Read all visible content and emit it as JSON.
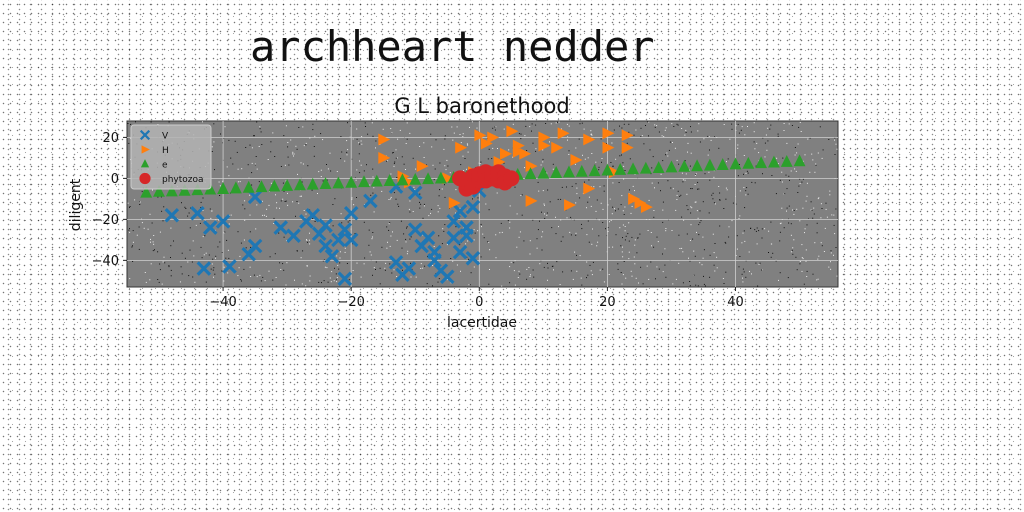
{
  "page_title": "archheart nedder",
  "chart_data": {
    "type": "scatter",
    "title": "G L baronethood",
    "xlabel": "lacertidae",
    "ylabel": "diligent",
    "xlim": [
      -55,
      56
    ],
    "ylim": [
      -53,
      28
    ],
    "x_ticks": [
      -40,
      -20,
      0,
      20,
      40
    ],
    "y_ticks": [
      -40,
      -20,
      0,
      20
    ],
    "grid": true,
    "legend_position": "top-left",
    "background": "#808080",
    "series": [
      {
        "name": "V",
        "marker": "x",
        "color": "#1f77b4",
        "points": [
          [
            -48,
            -18
          ],
          [
            -44,
            -17
          ],
          [
            -42,
            -24
          ],
          [
            -40,
            -21
          ],
          [
            -43,
            -44
          ],
          [
            -39,
            -43
          ],
          [
            -36,
            -37
          ],
          [
            -35,
            -33
          ],
          [
            -35,
            -9
          ],
          [
            -31,
            -24
          ],
          [
            -29,
            -28
          ],
          [
            -27,
            -21
          ],
          [
            -26,
            -18
          ],
          [
            -25,
            -27
          ],
          [
            -24,
            -23
          ],
          [
            -24,
            -33
          ],
          [
            -23,
            -38
          ],
          [
            -22,
            -30
          ],
          [
            -21,
            -25
          ],
          [
            -20,
            -17
          ],
          [
            -20,
            -30
          ],
          [
            -21,
            -49
          ],
          [
            -17,
            -11
          ],
          [
            -13,
            -4
          ],
          [
            -13,
            -41
          ],
          [
            -12,
            -47
          ],
          [
            -11,
            -44
          ],
          [
            -10,
            -7
          ],
          [
            -10,
            -25
          ],
          [
            -9,
            -33
          ],
          [
            -8,
            -29
          ],
          [
            -7,
            -36
          ],
          [
            -7,
            -40
          ],
          [
            -6,
            -45
          ],
          [
            -5,
            -48
          ],
          [
            -4,
            -21
          ],
          [
            -4,
            -29
          ],
          [
            -3,
            -16
          ],
          [
            -3,
            -36
          ],
          [
            -2,
            -24
          ],
          [
            -2,
            -28
          ],
          [
            -1,
            -14
          ],
          [
            -1,
            -39
          ],
          [
            0,
            -6
          ]
        ]
      },
      {
        "name": "H",
        "marker": "triangle-right",
        "color": "#ff7f0e",
        "points": [
          [
            -15,
            19
          ],
          [
            -15,
            10
          ],
          [
            -12,
            1
          ],
          [
            -11,
            -2
          ],
          [
            -9,
            6
          ],
          [
            -5,
            0
          ],
          [
            -4,
            -12
          ],
          [
            -3,
            15
          ],
          [
            -1,
            3
          ],
          [
            0,
            21
          ],
          [
            1,
            17
          ],
          [
            2,
            20
          ],
          [
            3,
            8
          ],
          [
            4,
            12
          ],
          [
            5,
            23
          ],
          [
            6,
            16
          ],
          [
            7,
            12
          ],
          [
            8,
            -11
          ],
          [
            8,
            6
          ],
          [
            10,
            20
          ],
          [
            10,
            16
          ],
          [
            12,
            15
          ],
          [
            13,
            22
          ],
          [
            14,
            -13
          ],
          [
            15,
            9
          ],
          [
            17,
            -5
          ],
          [
            17,
            19
          ],
          [
            20,
            15
          ],
          [
            20,
            22
          ],
          [
            21,
            3
          ],
          [
            23,
            15
          ],
          [
            23,
            21
          ],
          [
            24,
            -10
          ],
          [
            25,
            -12
          ],
          [
            26,
            -14
          ],
          [
            6,
            13
          ]
        ]
      },
      {
        "name": "e",
        "marker": "triangle-up",
        "color": "#2ca02c",
        "points": [
          [
            -52,
            -7
          ],
          [
            -50,
            -6.6
          ],
          [
            -48,
            -6.4
          ],
          [
            -46,
            -6.1
          ],
          [
            -44,
            -5.8
          ],
          [
            -42,
            -5.5
          ],
          [
            -40,
            -5.2
          ],
          [
            -38,
            -4.9
          ],
          [
            -36,
            -4.6
          ],
          [
            -34,
            -4.3
          ],
          [
            -32,
            -4
          ],
          [
            -30,
            -3.7
          ],
          [
            -28,
            -3.4
          ],
          [
            -26,
            -3.1
          ],
          [
            -24,
            -2.8
          ],
          [
            -22,
            -2.5
          ],
          [
            -20,
            -2.2
          ],
          [
            -18,
            -1.9
          ],
          [
            -16,
            -1.6
          ],
          [
            -14,
            -1.3
          ],
          [
            -12,
            -1
          ],
          [
            -10,
            -0.7
          ],
          [
            -8,
            -0.4
          ],
          [
            -6,
            -0.1
          ],
          [
            -4,
            0.2
          ],
          [
            -2,
            0.5
          ],
          [
            0,
            0.8
          ],
          [
            2,
            1.1
          ],
          [
            4,
            1.4
          ],
          [
            6,
            1.7
          ],
          [
            8,
            2
          ],
          [
            10,
            2.3
          ],
          [
            12,
            2.6
          ],
          [
            14,
            2.9
          ],
          [
            16,
            3.2
          ],
          [
            18,
            3.5
          ],
          [
            20,
            3.8
          ],
          [
            22,
            4.1
          ],
          [
            24,
            4.4
          ],
          [
            26,
            4.7
          ],
          [
            28,
            5
          ],
          [
            30,
            5.3
          ],
          [
            32,
            5.6
          ],
          [
            34,
            5.9
          ],
          [
            36,
            6.2
          ],
          [
            38,
            6.5
          ],
          [
            40,
            6.8
          ],
          [
            42,
            7.1
          ],
          [
            44,
            7.4
          ],
          [
            46,
            7.7
          ],
          [
            48,
            8
          ],
          [
            50,
            8.3
          ]
        ]
      },
      {
        "name": "phytozoa",
        "marker": "circle",
        "color": "#d62728",
        "points": [
          [
            -2,
            -5
          ],
          [
            -2,
            -2
          ],
          [
            -1,
            1
          ],
          [
            -1,
            -4
          ],
          [
            0,
            -1
          ],
          [
            0,
            2
          ],
          [
            1,
            3
          ],
          [
            1,
            -1
          ],
          [
            2,
            0
          ],
          [
            2,
            2
          ],
          [
            3,
            3
          ],
          [
            3,
            -1
          ],
          [
            4,
            1
          ],
          [
            4,
            -2
          ],
          [
            -3,
            0
          ],
          [
            5,
            0
          ]
        ]
      }
    ]
  }
}
